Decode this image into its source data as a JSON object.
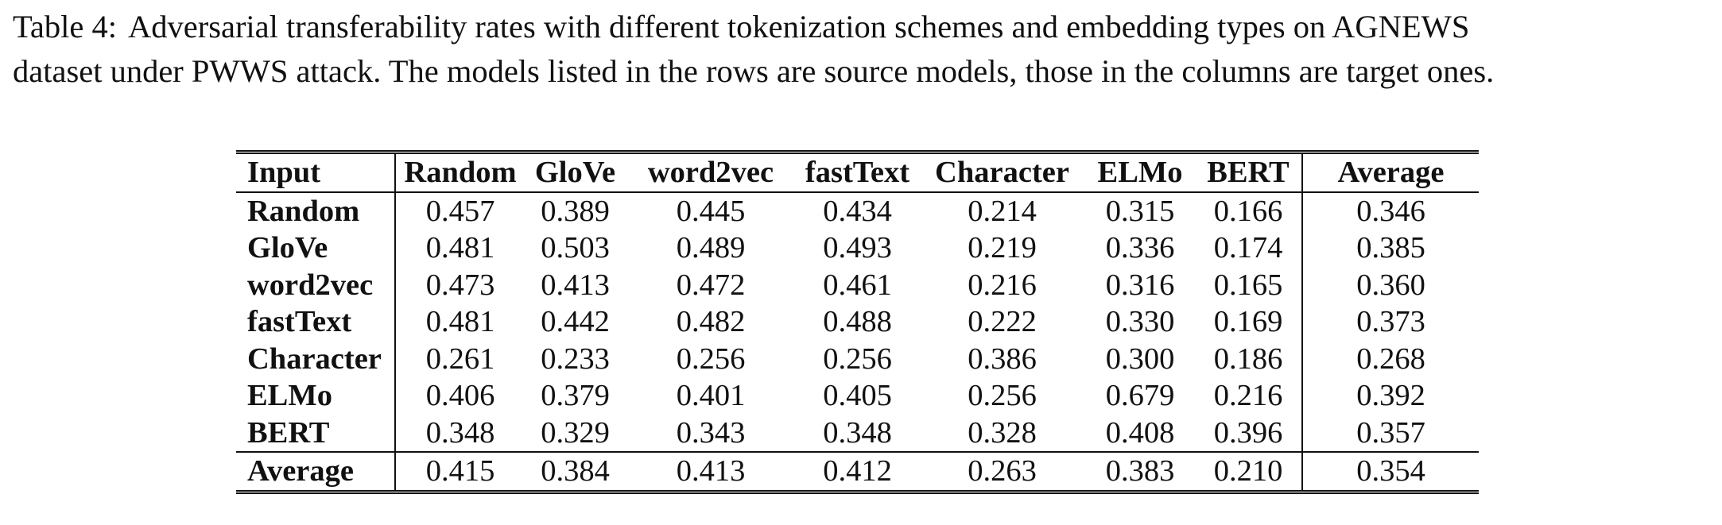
{
  "caption": {
    "label": "Table 4:",
    "line1_text": "Adversarial transferability rates with different tokenization schemes and embedding types on AGNEWS",
    "line2_text": "dataset under PWWS attack. The models listed in the rows are source models, those in the columns are target ones."
  },
  "table": {
    "corner_header": "Input",
    "columns": [
      "Random",
      "GloVe",
      "word2vec",
      "fastText",
      "Character",
      "ELMo",
      "BERT"
    ],
    "average_header": "Average",
    "rows": [
      {
        "label": "Random",
        "values": [
          "0.457",
          "0.389",
          "0.445",
          "0.434",
          "0.214",
          "0.315",
          "0.166"
        ],
        "average": "0.346"
      },
      {
        "label": "GloVe",
        "values": [
          "0.481",
          "0.503",
          "0.489",
          "0.493",
          "0.219",
          "0.336",
          "0.174"
        ],
        "average": "0.385"
      },
      {
        "label": "word2vec",
        "values": [
          "0.473",
          "0.413",
          "0.472",
          "0.461",
          "0.216",
          "0.316",
          "0.165"
        ],
        "average": "0.360"
      },
      {
        "label": "fastText",
        "values": [
          "0.481",
          "0.442",
          "0.482",
          "0.488",
          "0.222",
          "0.330",
          "0.169"
        ],
        "average": "0.373"
      },
      {
        "label": "Character",
        "values": [
          "0.261",
          "0.233",
          "0.256",
          "0.256",
          "0.386",
          "0.300",
          "0.186"
        ],
        "average": "0.268"
      },
      {
        "label": "ELMo",
        "values": [
          "0.406",
          "0.379",
          "0.401",
          "0.405",
          "0.256",
          "0.679",
          "0.216"
        ],
        "average": "0.392"
      },
      {
        "label": "BERT",
        "values": [
          "0.348",
          "0.329",
          "0.343",
          "0.348",
          "0.328",
          "0.408",
          "0.396"
        ],
        "average": "0.357"
      }
    ],
    "average_row": {
      "label": "Average",
      "values": [
        "0.415",
        "0.384",
        "0.413",
        "0.412",
        "0.263",
        "0.383",
        "0.210"
      ],
      "average": "0.354"
    }
  }
}
